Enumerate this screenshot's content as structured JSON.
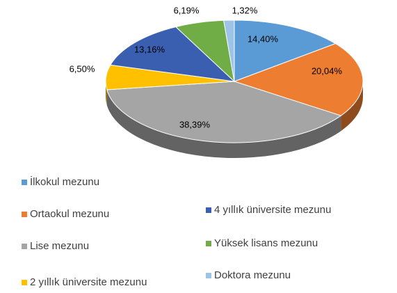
{
  "chart_data": {
    "type": "pie",
    "categories": [
      "İlkokul mezunu",
      "Ortaokul mezunu",
      "Lise mezunu",
      "2 yıllık üniversite mezunu",
      "4 yıllık üniversite mezunu",
      "Yüksek lisans mezunu",
      "Doktora mezunu"
    ],
    "values": [
      14.4,
      20.04,
      38.39,
      6.5,
      13.16,
      6.19,
      1.32
    ],
    "value_labels": [
      "14,40%",
      "20,04%",
      "38,39%",
      "6,50%",
      "13,16%",
      "6,19%",
      "1,32%"
    ],
    "colors": [
      "#5b9bd5",
      "#ed7d31",
      "#a5a5a5",
      "#ffc000",
      "#3a5fb0",
      "#70ad47",
      "#9dc3e6"
    ],
    "legend": "bottom"
  }
}
